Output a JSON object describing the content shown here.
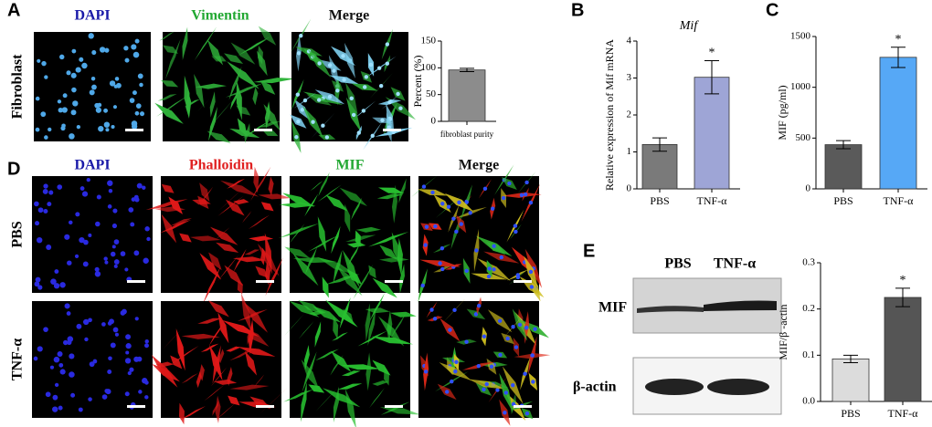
{
  "panels": {
    "labels": [
      "A",
      "B",
      "C",
      "D",
      "E"
    ]
  },
  "panel_a": {
    "columns": [
      "DAPI",
      "Vimentin",
      "Merge"
    ],
    "row": "Fibroblast"
  },
  "panel_d": {
    "columns": [
      "DAPI",
      "Phalloidin",
      "MIF",
      "Merge"
    ],
    "rows": [
      "PBS",
      "TNF-α"
    ]
  },
  "panel_e": {
    "lanes": [
      "PBS",
      "TNF-α"
    ],
    "bands": [
      "MIF",
      "β-actin"
    ]
  },
  "chart_data": [
    {
      "type": "bar",
      "ylabel": "Percent (%)",
      "categories": [
        "fibroblast purity"
      ],
      "series": [
        {
          "values": [
            96
          ],
          "errors": [
            3
          ],
          "colors": [
            "#8c8c8c"
          ]
        }
      ],
      "ylim": [
        0,
        150
      ],
      "yticks": [
        0,
        50,
        100,
        150
      ]
    },
    {
      "type": "bar",
      "title": "Mif",
      "ylabel": "Relative expression of Mif mRNA",
      "categories": [
        "PBS",
        "TNF-α"
      ],
      "series": [
        {
          "values": [
            1.2,
            3.02
          ],
          "errors": [
            0.18,
            0.45
          ],
          "colors": [
            "#7a7a7a",
            "#9ea5d6"
          ]
        }
      ],
      "ylim": [
        0,
        4
      ],
      "yticks": [
        0,
        1,
        2,
        3,
        4
      ],
      "annotation": "*"
    },
    {
      "type": "bar",
      "ylabel": "MIF (pg/ml)",
      "categories": [
        "PBS",
        "TNF-α"
      ],
      "series": [
        {
          "values": [
            435,
            1295
          ],
          "errors": [
            40,
            100
          ],
          "colors": [
            "#5a5a5a",
            "#56a8f6"
          ]
        }
      ],
      "ylim": [
        0,
        1500
      ],
      "yticks": [
        0,
        500,
        1000,
        1500
      ],
      "annotation": "*"
    },
    {
      "type": "bar",
      "ylabel": "MIF/β -actin",
      "categories": [
        "PBS",
        "TNF-α"
      ],
      "series": [
        {
          "values": [
            0.092,
            0.225
          ],
          "errors": [
            0.008,
            0.02
          ],
          "colors": [
            "#dcdcdc",
            "#555555"
          ]
        }
      ],
      "ylim": [
        0,
        0.3
      ],
      "yticks": [
        {
          "value": 0,
          "label": "0.0"
        },
        0.1,
        0.2,
        0.3
      ],
      "annotation": "*"
    }
  ]
}
